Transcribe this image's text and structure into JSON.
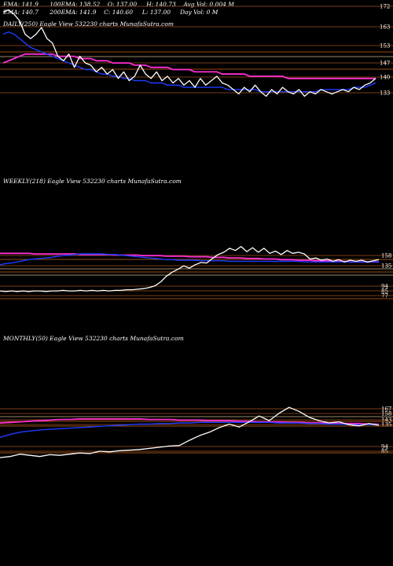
{
  "header": {
    "line1": [
      "EMA: 141.9",
      "100EMA: 138.52",
      "O: 137.00",
      "H: 140.73",
      "Avg Vol: 0.004 M"
    ],
    "line2": [
      "EMA: 140.7",
      "200EMA: 141.9",
      "C: 140.60",
      "L: 137.00",
      "Day Vol: 0  M"
    ]
  },
  "colors": {
    "background": "#000000",
    "price": "#ffffff",
    "ema_fast": "#1e3cff",
    "ema_slow": "#ff2fd6",
    "band_orange": "#c86414",
    "band_tan": "#d2b48c",
    "grid_orange": "#a0501e"
  },
  "chart_data": [
    {
      "type": "line",
      "title": "DAILY(250) Eagle  View  532230  charts MunafaSutra.com",
      "axis_levels": [
        "172",
        "163",
        "153",
        "147",
        "140",
        "133"
      ],
      "series": [
        {
          "values": [
            170,
            171,
            169,
            166,
            160,
            158,
            160,
            163,
            158,
            156,
            150,
            148,
            151,
            145,
            150,
            147,
            146,
            143,
            145,
            142,
            144,
            140,
            143,
            139,
            141,
            146,
            142,
            140,
            143,
            139,
            141,
            138,
            140,
            137,
            139,
            136,
            140,
            137,
            139,
            141,
            138,
            137,
            135,
            133,
            136,
            134,
            137,
            134,
            132,
            135,
            133,
            136,
            134,
            133,
            135,
            132,
            134,
            133,
            135,
            134,
            133,
            134,
            135,
            134,
            136,
            135,
            137,
            138,
            140
          ]
        },
        {
          "values": [
            160,
            161,
            160,
            158,
            156,
            154,
            153,
            152,
            151,
            150,
            149,
            148,
            147,
            146,
            145,
            144,
            144,
            143,
            142,
            142,
            141,
            141,
            140,
            140,
            139,
            139,
            139,
            138,
            138,
            138,
            137,
            137,
            137,
            136,
            136,
            136,
            136,
            136,
            136,
            136,
            136,
            135,
            135,
            135,
            135,
            135,
            135,
            134,
            134,
            134,
            134,
            134,
            134,
            134,
            134,
            134,
            134,
            134,
            135,
            135,
            135,
            135,
            135,
            135,
            136,
            136,
            136,
            137,
            138
          ]
        },
        {
          "values": [
            147,
            148,
            149,
            150,
            151,
            151,
            151,
            151,
            151,
            151,
            150,
            150,
            150,
            150,
            149,
            149,
            149,
            148,
            148,
            148,
            147,
            147,
            147,
            147,
            146,
            146,
            146,
            145,
            145,
            145,
            145,
            144,
            144,
            144,
            144,
            143,
            143,
            143,
            143,
            143,
            142,
            142,
            142,
            142,
            142,
            141,
            141,
            141,
            141,
            141,
            141,
            141,
            140,
            140,
            140,
            140,
            140,
            140,
            140,
            140,
            140,
            140,
            140,
            140,
            140,
            140,
            140,
            140,
            140
          ]
        }
      ]
    },
    {
      "type": "line",
      "title": "WEEKLY(218) Eagle  View  532230  charts MunafaSutra.com",
      "axis_levels": [
        "158",
        "135",
        "94",
        "85",
        "77"
      ],
      "series": [
        {
          "values": [
            92,
            91,
            92,
            91,
            92,
            91,
            92,
            92,
            91,
            92,
            92,
            93,
            92,
            92,
            93,
            92,
            93,
            92,
            93,
            92,
            93,
            93,
            94,
            94,
            95,
            96,
            98,
            101,
            108,
            118,
            125,
            130,
            136,
            132,
            138,
            142,
            141,
            149,
            156,
            160,
            167,
            163,
            170,
            161,
            168,
            160,
            167,
            158,
            162,
            156,
            163,
            158,
            160,
            157,
            148,
            150,
            146,
            148,
            144,
            147,
            143,
            146,
            144,
            146,
            143,
            145,
            147
          ]
        },
        {
          "values": [
            138,
            140,
            141,
            143,
            145,
            147,
            148,
            149,
            150,
            151,
            153,
            154,
            155,
            156,
            157,
            157,
            157,
            157,
            157,
            156,
            156,
            155,
            154,
            153,
            152,
            151,
            150,
            149,
            148,
            147,
            147,
            146,
            146,
            146,
            146,
            145,
            145,
            145,
            145,
            145,
            144,
            144,
            144,
            144,
            144,
            144,
            144,
            144,
            144,
            144,
            144,
            144,
            144,
            143,
            143,
            143,
            143,
            143,
            143,
            143,
            143,
            143,
            143,
            143,
            143,
            143,
            143
          ]
        },
        {
          "values": [
            158,
            158,
            158,
            158,
            158,
            158,
            157,
            157,
            157,
            157,
            157,
            157,
            157,
            157,
            156,
            156,
            156,
            156,
            156,
            156,
            155,
            155,
            155,
            155,
            155,
            154,
            154,
            154,
            154,
            153,
            153,
            153,
            153,
            152,
            152,
            152,
            152,
            151,
            151,
            151,
            150,
            150,
            150,
            149,
            149,
            149,
            148,
            148,
            148,
            147,
            147,
            147,
            146,
            146,
            146,
            145,
            145,
            145,
            144,
            144,
            144,
            143,
            143,
            143,
            143,
            143,
            143
          ]
        }
      ]
    },
    {
      "type": "line",
      "title": "MONTHLY(50) Eagle  View  532230  charts MunafaSutra.com",
      "axis_levels": [
        "167",
        "158",
        "143",
        "135",
        "94",
        "85"
      ],
      "series": [
        {
          "values": [
            88,
            90,
            94,
            92,
            90,
            93,
            92,
            94,
            96,
            95,
            99,
            98,
            100,
            101,
            102,
            104,
            106,
            108,
            109,
            118,
            126,
            132,
            140,
            146,
            141,
            150,
            160,
            152,
            165,
            175,
            168,
            158,
            152,
            148,
            150,
            145,
            143,
            147,
            144
          ]
        },
        {
          "values": [
            123,
            128,
            132,
            134,
            136,
            137,
            138,
            139,
            140,
            141,
            142,
            143,
            144,
            145,
            146,
            146,
            147,
            147,
            148,
            148,
            149,
            149,
            149,
            149,
            149,
            149,
            149,
            149,
            148,
            148,
            148,
            147,
            147,
            146,
            146,
            145,
            145,
            145,
            145
          ]
        },
        {
          "values": [
            148,
            149,
            150,
            151,
            152,
            153,
            154,
            154,
            155,
            155,
            155,
            155,
            155,
            155,
            155,
            154,
            154,
            154,
            153,
            153,
            153,
            152,
            152,
            152,
            151,
            151,
            150,
            150,
            150,
            149,
            149,
            148,
            148,
            148,
            147,
            147,
            147,
            146,
            146
          ]
        }
      ]
    }
  ]
}
